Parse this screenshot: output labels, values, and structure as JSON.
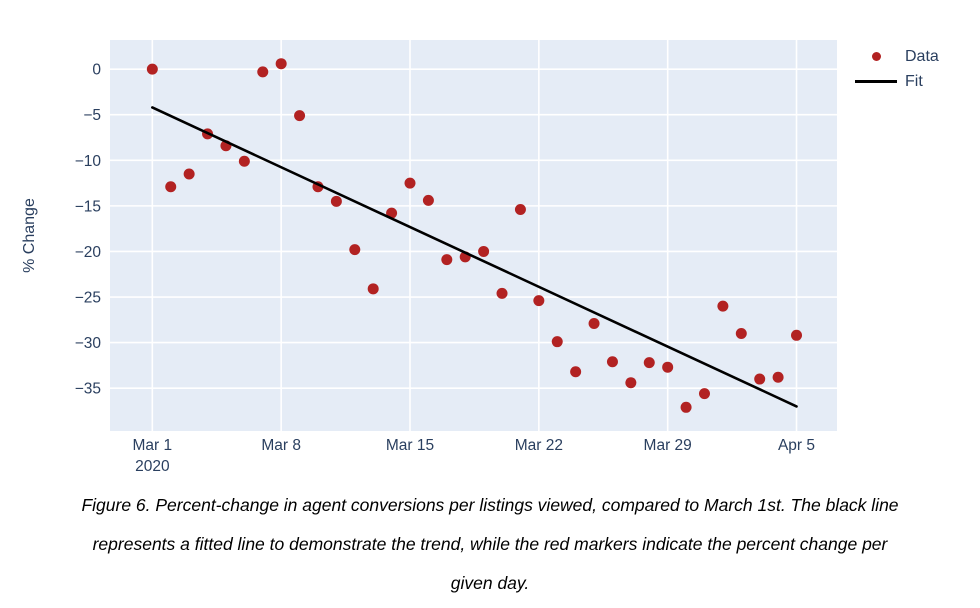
{
  "figure": {
    "caption_lines": [
      "Figure 6. Percent-change in agent conversions per listings viewed, compared to March 1st. The black line",
      "represents a fitted line to demonstrate the trend, while the red markers indicate the percent change per",
      "given day."
    ]
  },
  "chart_data": {
    "type": "scatter",
    "title": "",
    "xlabel": "",
    "ylabel": "% Change",
    "legend_position": "top-right",
    "grid": true,
    "plot_bg": "#E5ECF6",
    "grid_color": "#FFFFFF",
    "text_color": "#2A3F5F",
    "marker_color": "#B22222",
    "fit_color": "#000000",
    "x_tick_labels": [
      "Mar 1",
      "Mar 8",
      "Mar 15",
      "Mar 22",
      "Mar 29",
      "Apr 5"
    ],
    "x_tick_sub_label": {
      "tick": "Mar 1",
      "text": "2020"
    },
    "y_ticks": [
      0,
      -5,
      -10,
      -15,
      -20,
      -25,
      -30,
      -35
    ],
    "xlim_days": [
      -2.3,
      37.2
    ],
    "ylim": [
      3.2,
      -39.7
    ],
    "categories": [
      "Mar 1",
      "Mar 2",
      "Mar 3",
      "Mar 4",
      "Mar 5",
      "Mar 6",
      "Mar 7",
      "Mar 8",
      "Mar 9",
      "Mar 10",
      "Mar 11",
      "Mar 12",
      "Mar 13",
      "Mar 14",
      "Mar 15",
      "Mar 16",
      "Mar 17",
      "Mar 18",
      "Mar 19",
      "Mar 20",
      "Mar 21",
      "Mar 22",
      "Mar 23",
      "Mar 24",
      "Mar 25",
      "Mar 26",
      "Mar 27",
      "Mar 28",
      "Mar 29",
      "Mar 30",
      "Mar 31",
      "Apr 1",
      "Apr 2",
      "Apr 3",
      "Apr 4",
      "Apr 5"
    ],
    "series": [
      {
        "name": "Data",
        "mode": "markers",
        "values": [
          0.0,
          -12.9,
          -11.5,
          -7.1,
          -8.4,
          -10.1,
          -0.3,
          0.6,
          -5.1,
          -12.9,
          -14.5,
          -19.8,
          -24.1,
          -15.8,
          -12.5,
          -14.4,
          -20.9,
          -20.6,
          -20.0,
          -24.6,
          -15.4,
          -25.4,
          -29.9,
          -33.2,
          -27.9,
          -32.1,
          -34.4,
          -32.2,
          -32.7,
          -37.1,
          -35.6,
          -26.0,
          -29.0,
          -34.0,
          -33.8,
          -29.2
        ]
      },
      {
        "name": "Fit",
        "mode": "line",
        "x": [
          "Mar 1",
          "Apr 5"
        ],
        "y": [
          -4.2,
          -37.0
        ]
      }
    ],
    "legend": [
      {
        "label": "Data",
        "type": "marker"
      },
      {
        "label": "Fit",
        "type": "line"
      }
    ]
  }
}
